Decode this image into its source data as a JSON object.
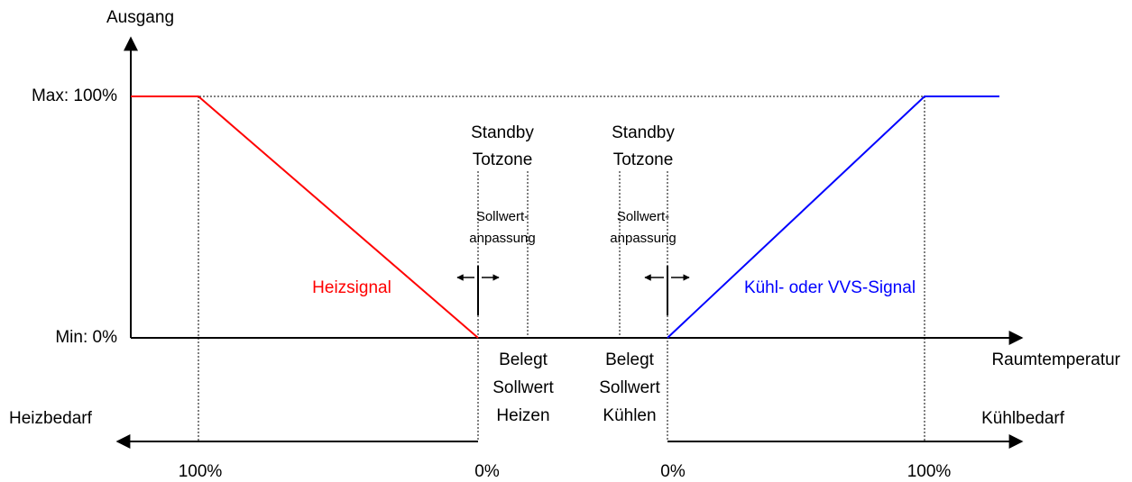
{
  "y_axis": {
    "title": "Ausgang",
    "max": "Max: 100%",
    "min": "Min: 0%"
  },
  "x_axis": {
    "title": "Raumtemperatur"
  },
  "heating": {
    "signal": "Heizsignal",
    "demand": "Heizbedarf",
    "full": "100%",
    "zero": "0%",
    "deadband": [
      "Standby",
      "Totzone"
    ],
    "adjust": [
      "Sollwert-",
      "anpassung"
    ],
    "setpoint": [
      "Belegt",
      "Sollwert",
      "Heizen"
    ]
  },
  "cooling": {
    "signal": "Kühl- oder VVS-Signal",
    "demand": "Kühlbedarf",
    "full": "100%",
    "zero": "0%",
    "deadband": [
      "Standby",
      "Totzone"
    ],
    "adjust": [
      "Sollwert-",
      "anpassung"
    ],
    "setpoint": [
      "Belegt",
      "Sollwert",
      "Kühlen"
    ]
  }
}
